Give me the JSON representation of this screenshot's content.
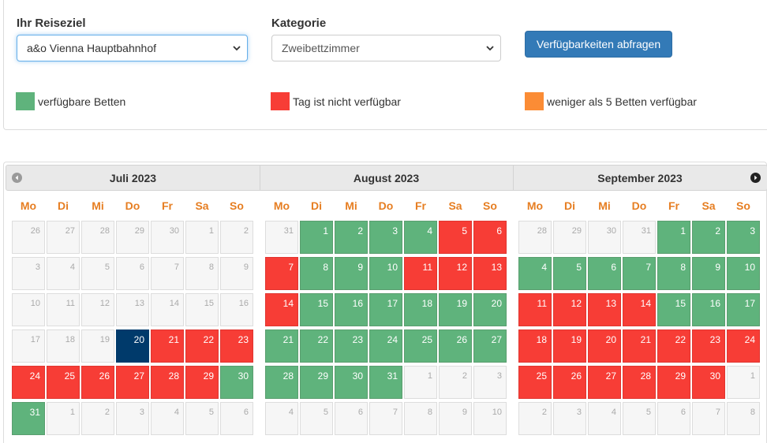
{
  "form": {
    "destination_label": "Ihr Reiseziel",
    "destination_value": "a&o Vienna Hauptbahnhof",
    "category_label": "Kategorie",
    "category_value": "Zweibettzimmer",
    "submit_label": "Verfügbarkeiten abfragen"
  },
  "legend": [
    {
      "label": "verfügbare Betten",
      "color": "#5fb37c"
    },
    {
      "label": "Tag ist nicht verfügbar",
      "color": "#f73d36"
    },
    {
      "label": "weniger als 5 Betten verfügbar",
      "color": "#fb8c35"
    }
  ],
  "colors": {
    "available": "#5fb37c",
    "unavailable": "#f73d36",
    "today": "#003a6b",
    "weekday_header": "#e67e22",
    "button": "#337ab7"
  },
  "calendar": {
    "prev_icon": "prev-arrow-icon",
    "next_icon": "next-arrow-icon",
    "weekdays": [
      "Mo",
      "Di",
      "Mi",
      "Do",
      "Fr",
      "Sa",
      "So"
    ],
    "months": [
      {
        "title": "Juli 2023",
        "weeks": [
          [
            {
              "d": "26",
              "s": "other"
            },
            {
              "d": "27",
              "s": "other"
            },
            {
              "d": "28",
              "s": "other"
            },
            {
              "d": "29",
              "s": "other"
            },
            {
              "d": "30",
              "s": "other"
            },
            {
              "d": "1",
              "s": "past"
            },
            {
              "d": "2",
              "s": "past"
            }
          ],
          [
            {
              "d": "3",
              "s": "past"
            },
            {
              "d": "4",
              "s": "past"
            },
            {
              "d": "5",
              "s": "past"
            },
            {
              "d": "6",
              "s": "past"
            },
            {
              "d": "7",
              "s": "past"
            },
            {
              "d": "8",
              "s": "past"
            },
            {
              "d": "9",
              "s": "past"
            }
          ],
          [
            {
              "d": "10",
              "s": "past"
            },
            {
              "d": "11",
              "s": "past"
            },
            {
              "d": "12",
              "s": "past"
            },
            {
              "d": "13",
              "s": "past"
            },
            {
              "d": "14",
              "s": "past"
            },
            {
              "d": "15",
              "s": "past"
            },
            {
              "d": "16",
              "s": "past"
            }
          ],
          [
            {
              "d": "17",
              "s": "past"
            },
            {
              "d": "18",
              "s": "past"
            },
            {
              "d": "19",
              "s": "past"
            },
            {
              "d": "20",
              "s": "today"
            },
            {
              "d": "21",
              "s": "red"
            },
            {
              "d": "22",
              "s": "red"
            },
            {
              "d": "23",
              "s": "red"
            }
          ],
          [
            {
              "d": "24",
              "s": "red"
            },
            {
              "d": "25",
              "s": "red"
            },
            {
              "d": "26",
              "s": "red"
            },
            {
              "d": "27",
              "s": "red"
            },
            {
              "d": "28",
              "s": "red"
            },
            {
              "d": "29",
              "s": "red"
            },
            {
              "d": "30",
              "s": "green"
            }
          ],
          [
            {
              "d": "31",
              "s": "green"
            },
            {
              "d": "1",
              "s": "other"
            },
            {
              "d": "2",
              "s": "other"
            },
            {
              "d": "3",
              "s": "other"
            },
            {
              "d": "4",
              "s": "other"
            },
            {
              "d": "5",
              "s": "other"
            },
            {
              "d": "6",
              "s": "other"
            }
          ]
        ]
      },
      {
        "title": "August 2023",
        "weeks": [
          [
            {
              "d": "31",
              "s": "other"
            },
            {
              "d": "1",
              "s": "green"
            },
            {
              "d": "2",
              "s": "green"
            },
            {
              "d": "3",
              "s": "green"
            },
            {
              "d": "4",
              "s": "green"
            },
            {
              "d": "5",
              "s": "red"
            },
            {
              "d": "6",
              "s": "red"
            }
          ],
          [
            {
              "d": "7",
              "s": "red"
            },
            {
              "d": "8",
              "s": "green"
            },
            {
              "d": "9",
              "s": "green"
            },
            {
              "d": "10",
              "s": "green"
            },
            {
              "d": "11",
              "s": "red"
            },
            {
              "d": "12",
              "s": "red"
            },
            {
              "d": "13",
              "s": "red"
            }
          ],
          [
            {
              "d": "14",
              "s": "red"
            },
            {
              "d": "15",
              "s": "green"
            },
            {
              "d": "16",
              "s": "green"
            },
            {
              "d": "17",
              "s": "green"
            },
            {
              "d": "18",
              "s": "green"
            },
            {
              "d": "19",
              "s": "green"
            },
            {
              "d": "20",
              "s": "green"
            }
          ],
          [
            {
              "d": "21",
              "s": "green"
            },
            {
              "d": "22",
              "s": "green"
            },
            {
              "d": "23",
              "s": "green"
            },
            {
              "d": "24",
              "s": "green"
            },
            {
              "d": "25",
              "s": "green"
            },
            {
              "d": "26",
              "s": "green"
            },
            {
              "d": "27",
              "s": "green"
            }
          ],
          [
            {
              "d": "28",
              "s": "green"
            },
            {
              "d": "29",
              "s": "green"
            },
            {
              "d": "30",
              "s": "green"
            },
            {
              "d": "31",
              "s": "green"
            },
            {
              "d": "1",
              "s": "other"
            },
            {
              "d": "2",
              "s": "other"
            },
            {
              "d": "3",
              "s": "other"
            }
          ],
          [
            {
              "d": "4",
              "s": "other"
            },
            {
              "d": "5",
              "s": "other"
            },
            {
              "d": "6",
              "s": "other"
            },
            {
              "d": "7",
              "s": "other"
            },
            {
              "d": "8",
              "s": "other"
            },
            {
              "d": "9",
              "s": "other"
            },
            {
              "d": "10",
              "s": "other"
            }
          ]
        ]
      },
      {
        "title": "September 2023",
        "weeks": [
          [
            {
              "d": "28",
              "s": "other"
            },
            {
              "d": "29",
              "s": "other"
            },
            {
              "d": "30",
              "s": "other"
            },
            {
              "d": "31",
              "s": "other"
            },
            {
              "d": "1",
              "s": "green"
            },
            {
              "d": "2",
              "s": "green"
            },
            {
              "d": "3",
              "s": "green"
            }
          ],
          [
            {
              "d": "4",
              "s": "green"
            },
            {
              "d": "5",
              "s": "green"
            },
            {
              "d": "6",
              "s": "green"
            },
            {
              "d": "7",
              "s": "green"
            },
            {
              "d": "8",
              "s": "green"
            },
            {
              "d": "9",
              "s": "green"
            },
            {
              "d": "10",
              "s": "green"
            }
          ],
          [
            {
              "d": "11",
              "s": "red"
            },
            {
              "d": "12",
              "s": "red"
            },
            {
              "d": "13",
              "s": "red"
            },
            {
              "d": "14",
              "s": "red"
            },
            {
              "d": "15",
              "s": "green"
            },
            {
              "d": "16",
              "s": "green"
            },
            {
              "d": "17",
              "s": "green"
            }
          ],
          [
            {
              "d": "18",
              "s": "red"
            },
            {
              "d": "19",
              "s": "red"
            },
            {
              "d": "20",
              "s": "red"
            },
            {
              "d": "21",
              "s": "red"
            },
            {
              "d": "22",
              "s": "red"
            },
            {
              "d": "23",
              "s": "red"
            },
            {
              "d": "24",
              "s": "red"
            }
          ],
          [
            {
              "d": "25",
              "s": "red"
            },
            {
              "d": "26",
              "s": "red"
            },
            {
              "d": "27",
              "s": "red"
            },
            {
              "d": "28",
              "s": "red"
            },
            {
              "d": "29",
              "s": "red"
            },
            {
              "d": "30",
              "s": "red"
            },
            {
              "d": "1",
              "s": "other"
            }
          ],
          [
            {
              "d": "2",
              "s": "other"
            },
            {
              "d": "3",
              "s": "other"
            },
            {
              "d": "4",
              "s": "other"
            },
            {
              "d": "5",
              "s": "other"
            },
            {
              "d": "6",
              "s": "other"
            },
            {
              "d": "7",
              "s": "other"
            },
            {
              "d": "8",
              "s": "other"
            }
          ]
        ]
      }
    ]
  }
}
